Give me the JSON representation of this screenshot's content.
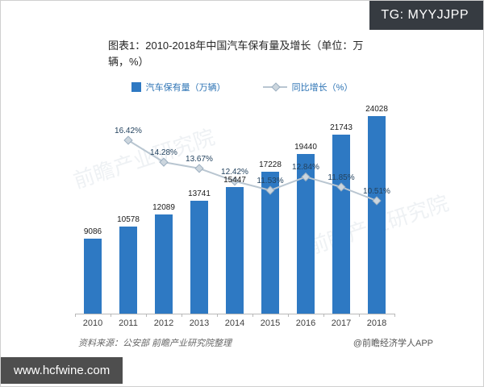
{
  "badges": {
    "tg": "TG: MYYJJPP",
    "site": "www.hcfwine.com"
  },
  "watermark": {
    "text": "前瞻产业研究院"
  },
  "footer": {
    "source": "资料来源：公安部 前瞻产业研究院整理",
    "credit": "@前瞻经济学人APP"
  },
  "colors": {
    "bar": "#2e79c3",
    "line": "#b9c6d1",
    "marker_fill": "#ccd6de",
    "marker_edge": "#9cafc0"
  },
  "chart_data": {
    "type": "bar",
    "title": "图表1：2010-2018年中国汽车保有量及增长（单位：万辆，%）",
    "categories": [
      "2010",
      "2011",
      "2012",
      "2013",
      "2014",
      "2015",
      "2016",
      "2017",
      "2018"
    ],
    "series": [
      {
        "name": "汽车保有量（万辆）",
        "type": "bar",
        "color": "#2e79c3",
        "values": [
          9086,
          10578,
          12089,
          13741,
          15447,
          17228,
          19440,
          21743,
          24028
        ]
      },
      {
        "name": "同比增长（%）",
        "type": "line",
        "color": "#b9c6d1",
        "values": [
          null,
          16.42,
          14.28,
          13.67,
          12.42,
          11.53,
          12.84,
          11.85,
          10.51
        ]
      }
    ],
    "ylim": [
      0,
      25500
    ],
    "grid": false,
    "legend_position": "top",
    "xlabel": "",
    "ylabel": ""
  }
}
